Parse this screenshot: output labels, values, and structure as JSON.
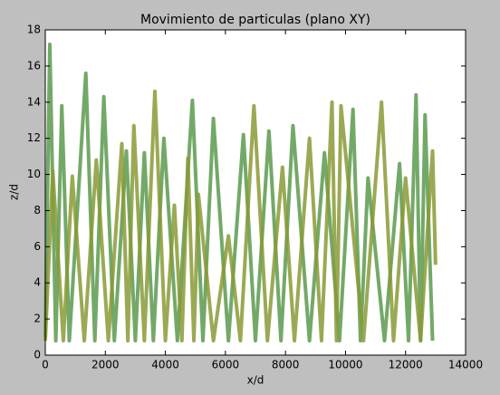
{
  "chart_data": {
    "type": "line",
    "title": "Movimiento de particulas (plano XY)",
    "xlabel": "x/d",
    "ylabel": "z/d",
    "xlim": [
      0,
      14000
    ],
    "xticks": [
      0,
      2000,
      4000,
      6000,
      8000,
      10000,
      12000,
      14000
    ],
    "ylim": [
      0,
      18
    ],
    "yticks": [
      0,
      2,
      4,
      6,
      8,
      10,
      12,
      14,
      16,
      18
    ],
    "series": [
      {
        "color": "#5a9a4e",
        "x": [
          0,
          150,
          350,
          550,
          800,
          1350,
          1650,
          1950,
          2300,
          2700,
          3000,
          3300,
          3600,
          3950,
          4400,
          4900,
          5250,
          5600,
          6100,
          6600,
          7000,
          7450,
          7850,
          8250,
          8800,
          9300,
          9800,
          10250,
          10500,
          10750,
          11300,
          11800,
          12100,
          12350,
          12500,
          12650,
          12900
        ],
        "values": [
          1,
          17.2,
          0.8,
          13.8,
          0.8,
          15.6,
          0.8,
          14.3,
          0.8,
          11.3,
          0.8,
          11.2,
          0.8,
          12.0,
          0.8,
          14.1,
          0.8,
          13.1,
          0.8,
          12.2,
          0.8,
          12.4,
          0.8,
          12.7,
          0.8,
          11.2,
          0.8,
          13.6,
          0.8,
          9.8,
          0.8,
          10.6,
          0.8,
          14.4,
          0.8,
          13.3,
          0.8
        ]
      },
      {
        "color": "#8a9a36",
        "x": [
          0,
          250,
          600,
          900,
          1300,
          1700,
          2100,
          2550,
          2750,
          2950,
          3300,
          3650,
          4000,
          4300,
          4550,
          4750,
          4950,
          5100,
          5600,
          6100,
          6500,
          6950,
          7400,
          7900,
          8300,
          8800,
          9200,
          9550,
          9700,
          9850,
          10600,
          11200,
          11600,
          12000,
          12500,
          12900,
          13000
        ],
        "values": [
          0.8,
          10.2,
          0.8,
          9.9,
          0.8,
          10.8,
          0.8,
          11.7,
          0.8,
          12.7,
          0.8,
          14.6,
          0.8,
          8.3,
          0.8,
          10.9,
          0.8,
          8.9,
          0.8,
          6.6,
          0.8,
          13.8,
          0.8,
          10.4,
          0.8,
          12.0,
          0.8,
          14.0,
          0.8,
          13.8,
          0.8,
          14.0,
          0.8,
          9.8,
          0.8,
          11.3,
          5.0
        ]
      }
    ]
  }
}
